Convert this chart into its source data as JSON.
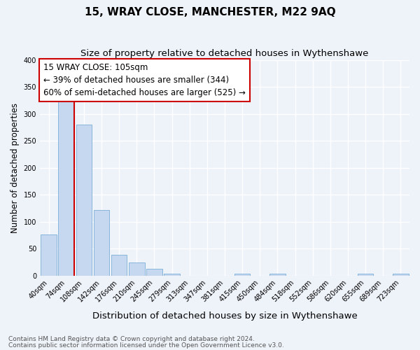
{
  "title": "15, WRAY CLOSE, MANCHESTER, M22 9AQ",
  "subtitle": "Size of property relative to detached houses in Wythenshawe",
  "xlabel": "Distribution of detached houses by size in Wythenshawe",
  "ylabel": "Number of detached properties",
  "categories": [
    "40sqm",
    "74sqm",
    "108sqm",
    "142sqm",
    "176sqm",
    "210sqm",
    "245sqm",
    "279sqm",
    "313sqm",
    "347sqm",
    "381sqm",
    "415sqm",
    "450sqm",
    "484sqm",
    "518sqm",
    "552sqm",
    "586sqm",
    "620sqm",
    "655sqm",
    "689sqm",
    "723sqm"
  ],
  "values": [
    76,
    325,
    280,
    122,
    38,
    24,
    13,
    3,
    0,
    0,
    0,
    3,
    0,
    3,
    0,
    0,
    0,
    0,
    3,
    0,
    3
  ],
  "bar_color": "#c5d8f0",
  "bar_edge_color": "#7aaed6",
  "vline_color": "#cc0000",
  "vline_x_index": 1,
  "annotation_box_text": "15 WRAY CLOSE: 105sqm\n← 39% of detached houses are smaller (344)\n60% of semi-detached houses are larger (525) →",
  "annotation_box_facecolor": "#ffffff",
  "annotation_box_edgecolor": "#cc0000",
  "ylim": [
    0,
    400
  ],
  "yticks": [
    0,
    50,
    100,
    150,
    200,
    250,
    300,
    350,
    400
  ],
  "footnote1": "Contains HM Land Registry data © Crown copyright and database right 2024.",
  "footnote2": "Contains public sector information licensed under the Open Government Licence v3.0.",
  "background_color": "#eef2f9",
  "grid_color": "#ffffff",
  "title_fontsize": 11,
  "subtitle_fontsize": 9.5,
  "xlabel_fontsize": 9.5,
  "ylabel_fontsize": 8.5,
  "tick_fontsize": 7,
  "annotation_fontsize": 8.5,
  "footnote_fontsize": 6.5
}
